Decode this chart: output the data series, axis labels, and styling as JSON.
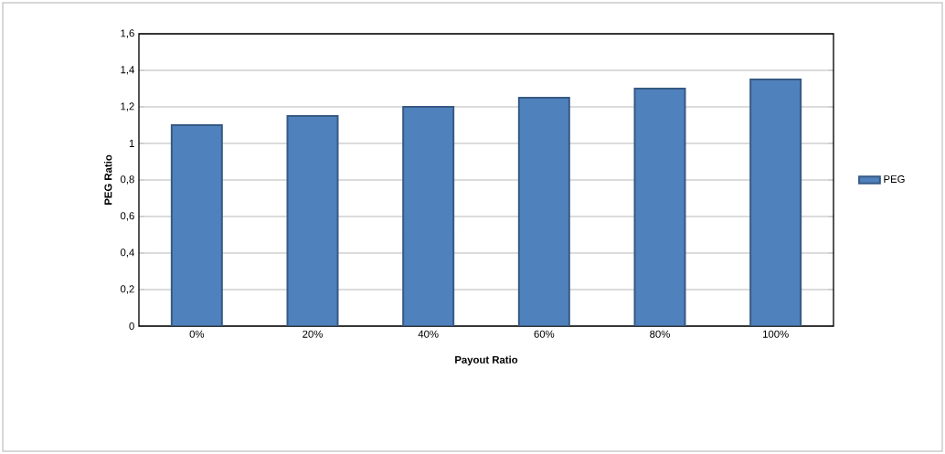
{
  "chart_data": {
    "type": "bar",
    "xlabel": "Payout Ratio",
    "ylabel": "PEG Ratio",
    "categories": [
      "0%",
      "20%",
      "40%",
      "60%",
      "80%",
      "100%"
    ],
    "series": [
      {
        "name": "PEG",
        "color": "#4f81bd",
        "values": [
          1.1,
          1.15,
          1.2,
          1.25,
          1.3,
          1.35
        ]
      }
    ],
    "ylim": [
      0,
      1.6
    ],
    "yticks": [
      0,
      {
        "value": 0.2,
        "label": "0,2"
      },
      {
        "value": 0.4,
        "label": "0,4"
      },
      {
        "value": 0.6,
        "label": "0,6"
      },
      {
        "value": 0.8,
        "label": "0,8"
      },
      1,
      {
        "value": 1.2,
        "label": "1,2"
      },
      {
        "value": 1.4,
        "label": "1,4"
      },
      {
        "value": 1.6,
        "label": "1,6"
      }
    ],
    "grid": "y",
    "legend": "right"
  }
}
